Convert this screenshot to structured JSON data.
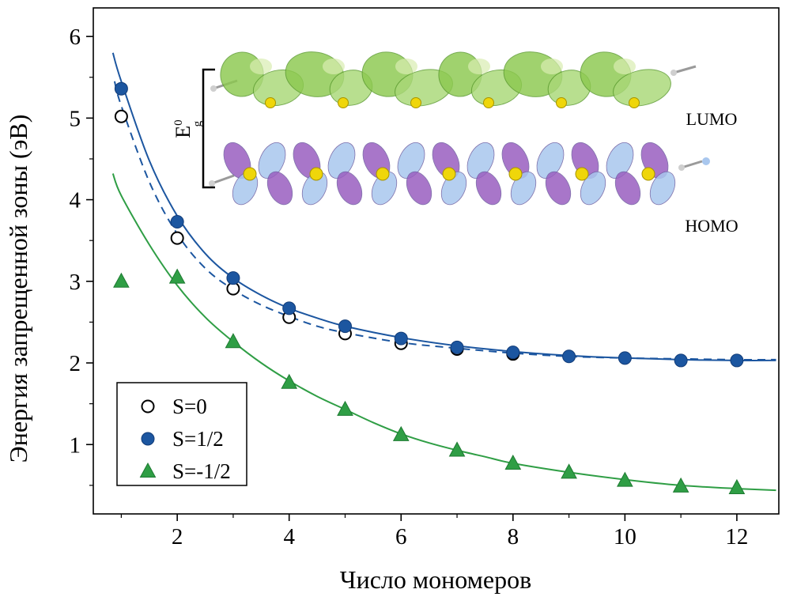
{
  "chart_data": {
    "type": "scatter",
    "title": "",
    "xlabel": "Число мономеров",
    "ylabel": "Энергия запрещенной зоны (эВ)",
    "xlim": [
      0.5,
      12.75
    ],
    "ylim": [
      0.15,
      6.35
    ],
    "x_major_ticks": [
      2,
      4,
      6,
      8,
      10,
      12
    ],
    "x_minor_ticks": [
      1,
      3,
      5,
      7,
      9,
      11
    ],
    "y_major_ticks": [
      1,
      2,
      3,
      4,
      5,
      6
    ],
    "y_minor_step": 0.5,
    "grid": false,
    "legend_position": "lower-left",
    "series": [
      {
        "name": "S=0",
        "marker": "open-circle",
        "color": "#ffffff",
        "edge": "#000000",
        "line": "dashed",
        "line_color": "#1c56a0",
        "x": [
          1,
          2,
          3,
          4,
          5,
          6,
          7,
          8
        ],
        "y": [
          5.02,
          3.53,
          2.91,
          2.56,
          2.36,
          2.24,
          2.17,
          2.11
        ],
        "fit_curve": [
          [
            0.88,
            5.45
          ],
          [
            1,
            5.15
          ],
          [
            1.5,
            4.22
          ],
          [
            2,
            3.58
          ],
          [
            2.5,
            3.16
          ],
          [
            3,
            2.9
          ],
          [
            3.5,
            2.71
          ],
          [
            4,
            2.57
          ],
          [
            4.5,
            2.45
          ],
          [
            5,
            2.37
          ],
          [
            6,
            2.25
          ],
          [
            7,
            2.18
          ],
          [
            8,
            2.12
          ],
          [
            9,
            2.08
          ],
          [
            10,
            2.06
          ],
          [
            11,
            2.05
          ],
          [
            12,
            2.04
          ],
          [
            12.7,
            2.04
          ]
        ]
      },
      {
        "name": "S=1/2",
        "marker": "circle",
        "color": "#1c56a0",
        "edge": "#123c78",
        "line": "solid",
        "line_color": "#1c56a0",
        "x": [
          1,
          2,
          3,
          4,
          5,
          6,
          7,
          8,
          9,
          10,
          11,
          12
        ],
        "y": [
          5.36,
          3.73,
          3.04,
          2.67,
          2.45,
          2.3,
          2.19,
          2.13,
          2.08,
          2.06,
          2.03,
          2.03
        ],
        "fit_curve": [
          [
            0.85,
            5.8
          ],
          [
            1,
            5.45
          ],
          [
            1.5,
            4.48
          ],
          [
            2,
            3.8
          ],
          [
            2.5,
            3.34
          ],
          [
            3,
            3.04
          ],
          [
            3.5,
            2.83
          ],
          [
            4,
            2.67
          ],
          [
            4.5,
            2.55
          ],
          [
            5,
            2.45
          ],
          [
            6,
            2.31
          ],
          [
            7,
            2.21
          ],
          [
            8,
            2.14
          ],
          [
            9,
            2.09
          ],
          [
            10,
            2.06
          ],
          [
            11,
            2.04
          ],
          [
            12,
            2.03
          ],
          [
            12.7,
            2.03
          ]
        ]
      },
      {
        "name": "S=-1/2",
        "marker": "triangle",
        "color": "#2f9e45",
        "edge": "#1d7a31",
        "line": "solid",
        "line_color": "#2f9e45",
        "x": [
          1,
          2,
          3,
          4,
          5,
          6,
          7,
          8,
          9,
          10,
          11,
          12
        ],
        "y": [
          3.0,
          3.05,
          2.26,
          1.76,
          1.43,
          1.12,
          0.93,
          0.77,
          0.66,
          0.56,
          0.49,
          0.47
        ],
        "fit_curve": [
          [
            0.85,
            4.32
          ],
          [
            1,
            4.05
          ],
          [
            1.5,
            3.45
          ],
          [
            2,
            2.95
          ],
          [
            2.5,
            2.56
          ],
          [
            3,
            2.26
          ],
          [
            3.5,
            2.0
          ],
          [
            4,
            1.78
          ],
          [
            4.5,
            1.59
          ],
          [
            5,
            1.43
          ],
          [
            5.5,
            1.27
          ],
          [
            6,
            1.13
          ],
          [
            6.5,
            1.02
          ],
          [
            7,
            0.93
          ],
          [
            7.5,
            0.85
          ],
          [
            8,
            0.77
          ],
          [
            9,
            0.66
          ],
          [
            10,
            0.57
          ],
          [
            11,
            0.5
          ],
          [
            12,
            0.46
          ],
          [
            12.7,
            0.44
          ]
        ]
      }
    ],
    "inset": {
      "lumo_label": "LUMO",
      "homo_label": "HOMO",
      "bracket_main": "E",
      "bracket_sup": "0",
      "bracket_sub": "g",
      "colors": {
        "lumo": [
          "#8cc94f",
          "#a9d877"
        ],
        "lumo_light": "#d9edb0",
        "lumo_edge": "#5a9a2e",
        "homo_purple": "#9a5fc0",
        "homo_blue": "#a9c7ee",
        "homo_edge": "#6b5a9e",
        "sulfur": "#efd60a",
        "sulfur_edge": "#a89400",
        "bond_gray": "#9a9a9a",
        "atom_gray": "#cfcfcf"
      }
    }
  }
}
